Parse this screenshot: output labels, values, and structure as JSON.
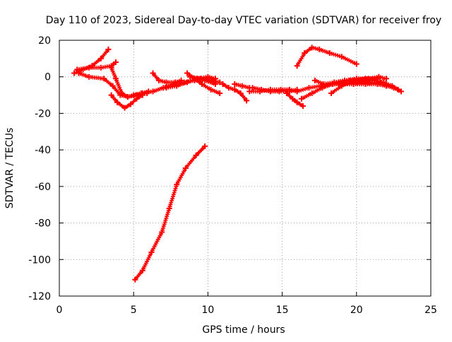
{
  "chart_data": {
    "type": "scatter",
    "title": "Day 110 of 2023, Sidereal Day-to-day VTEC variation (SDTVAR) for receiver froy",
    "xlabel": "GPS time / hours",
    "ylabel": "SDTVAR / TECUs",
    "xlim": [
      0,
      25
    ],
    "ylim": [
      -120,
      20
    ],
    "xticks": [
      0,
      5,
      10,
      15,
      20,
      25
    ],
    "yticks": [
      -120,
      -100,
      -80,
      -60,
      -40,
      -20,
      0,
      20
    ],
    "grid": true,
    "legend": "none",
    "marker": "plus",
    "series_color": "#ff0000",
    "series": [
      {
        "x": [
          5.1,
          5.6,
          6.2,
          6.9,
          7.4,
          7.9,
          8.5,
          9.2,
          9.8
        ],
        "y": [
          -111,
          -106,
          -96,
          -85,
          -72,
          -59,
          -50,
          -43,
          -38
        ]
      },
      {
        "x": [
          1.0,
          1.6,
          2.2,
          2.8,
          3.3
        ],
        "y": [
          2,
          4,
          6,
          10,
          15
        ]
      },
      {
        "x": [
          1.2,
          2.0,
          2.8,
          3.5,
          3.8
        ],
        "y": [
          4,
          5,
          5,
          6,
          8
        ]
      },
      {
        "x": [
          1.3,
          2.0,
          3.0,
          3.6,
          4.1,
          4.6,
          5.2,
          5.9
        ],
        "y": [
          2,
          0,
          -1,
          -5,
          -10,
          -11,
          -10,
          -9
        ]
      },
      {
        "x": [
          3.5,
          3.8,
          4.2,
          4.6,
          5.0,
          5.5,
          6.0
        ],
        "y": [
          5,
          -1,
          -9,
          -11,
          -10,
          -9,
          -8
        ]
      },
      {
        "x": [
          3.5,
          3.9,
          4.4,
          4.8,
          5.2,
          5.6
        ],
        "y": [
          -10,
          -14,
          -17,
          -15,
          -12,
          -10
        ]
      },
      {
        "x": [
          5.6,
          6.3,
          7.0,
          7.7,
          8.4,
          9.1,
          9.8,
          10.5
        ],
        "y": [
          -9,
          -8,
          -6,
          -4,
          -3,
          -2,
          -2,
          -4
        ]
      },
      {
        "x": [
          6.3,
          6.7,
          7.2,
          7.8,
          8.2
        ],
        "y": [
          2,
          -2,
          -3,
          -3,
          -2
        ]
      },
      {
        "x": [
          7.2,
          7.9,
          8.6,
          9.3,
          10.0,
          10.5
        ],
        "y": [
          -6,
          -5,
          -3,
          -1,
          0,
          -1
        ]
      },
      {
        "x": [
          8.6,
          9.1,
          9.6,
          10.2,
          10.8
        ],
        "y": [
          2,
          -1,
          -4,
          -7,
          -9
        ]
      },
      {
        "x": [
          8.8,
          9.5,
          10.2,
          10.8
        ],
        "y": [
          0,
          -1,
          -2,
          -3
        ]
      },
      {
        "x": [
          11.0,
          11.4,
          11.8,
          12.2,
          12.6
        ],
        "y": [
          -4,
          -6,
          -7,
          -9,
          -13
        ]
      },
      {
        "x": [
          11.8,
          12.3,
          12.8
        ],
        "y": [
          -4,
          -5,
          -6
        ]
      },
      {
        "x": [
          12.8,
          13.5,
          14.2,
          14.9,
          15.5,
          16.0
        ],
        "y": [
          -8,
          -8,
          -7,
          -7,
          -7,
          -8
        ]
      },
      {
        "x": [
          13.0,
          13.6,
          14.2,
          14.8,
          15.5,
          16.0
        ],
        "y": [
          -6,
          -7,
          -8,
          -8,
          -8,
          -7
        ]
      },
      {
        "x": [
          15.3,
          15.7,
          16.0,
          16.4
        ],
        "y": [
          -9,
          -12,
          -14,
          -16
        ]
      },
      {
        "x": [
          16.0,
          16.8,
          17.6,
          18.4,
          19.2,
          20.0,
          20.8
        ],
        "y": [
          -8,
          -6,
          -5,
          -4,
          -3,
          -3,
          -3
        ]
      },
      {
        "x": [
          16.3,
          17.0,
          17.7,
          18.4,
          19.0
        ],
        "y": [
          -12,
          -9,
          -6,
          -4,
          -4
        ]
      },
      {
        "x": [
          16.0,
          16.5,
          17.0,
          17.5,
          18.2,
          19.0,
          20.0
        ],
        "y": [
          6,
          13,
          16,
          15,
          13,
          11,
          7
        ]
      },
      {
        "x": [
          17.2,
          17.8,
          18.5,
          19.2,
          20.0,
          20.8,
          21.5,
          22.0
        ],
        "y": [
          -2,
          -4,
          -3,
          -2,
          -1,
          -1,
          0,
          -1
        ]
      },
      {
        "x": [
          18.3,
          19.0,
          19.8,
          20.6,
          21.4
        ],
        "y": [
          -9,
          -5,
          -2,
          -1,
          -1
        ]
      },
      {
        "x": [
          18.8,
          19.5,
          20.2,
          20.9,
          21.6
        ],
        "y": [
          -3,
          -2,
          -2,
          -3,
          -3
        ]
      },
      {
        "x": [
          19.0,
          19.8,
          20.6,
          21.4,
          22.0,
          22.5,
          23.0
        ],
        "y": [
          -4,
          -4,
          -4,
          -4,
          -5,
          -6,
          -8
        ]
      },
      {
        "x": [
          19.6,
          20.4,
          21.2,
          21.8,
          22.4,
          22.8
        ],
        "y": [
          -2,
          -2,
          -2,
          -3,
          -5,
          -7
        ]
      }
    ]
  }
}
